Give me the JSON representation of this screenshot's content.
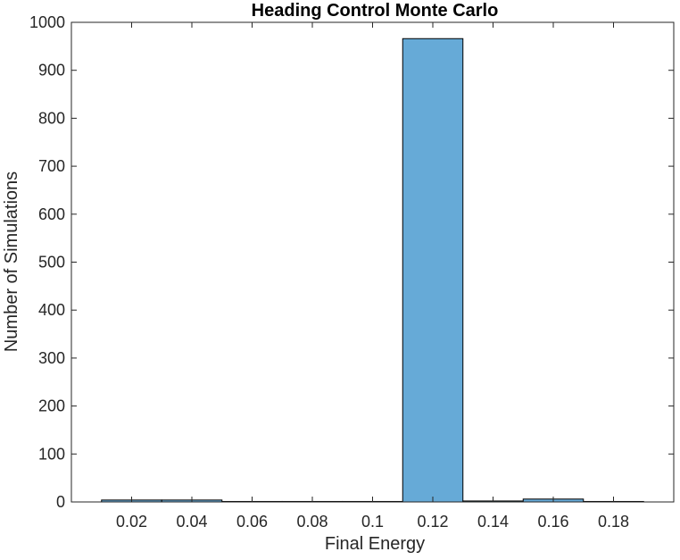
{
  "chart_data": {
    "type": "bar",
    "title": "Heading Control Monte Carlo",
    "xlabel": "Final Energy",
    "ylabel": "Number of Simulations",
    "xlim": [
      0,
      0.2
    ],
    "ylim": [
      0,
      1000
    ],
    "xticks": [
      "0.02",
      "0.04",
      "0.06",
      "0.08",
      "0.1",
      "0.12",
      "0.14",
      "0.16",
      "0.18"
    ],
    "yticks": [
      "0",
      "100",
      "200",
      "300",
      "400",
      "500",
      "600",
      "700",
      "800",
      "900",
      "1000"
    ],
    "xtick_values": [
      0.02,
      0.04,
      0.06,
      0.08,
      0.1,
      0.12,
      0.14,
      0.16,
      0.18
    ],
    "ytick_values": [
      0,
      100,
      200,
      300,
      400,
      500,
      600,
      700,
      800,
      900,
      1000
    ],
    "bin_edges": [
      0.01,
      0.03,
      0.05,
      0.07,
      0.09,
      0.11,
      0.13,
      0.15,
      0.17,
      0.19
    ],
    "values": [
      4,
      4,
      1,
      1,
      1,
      966,
      2,
      6,
      1,
      5
    ],
    "grid": false,
    "bar_color": "#66AAD7",
    "edge_color": "#000000"
  }
}
